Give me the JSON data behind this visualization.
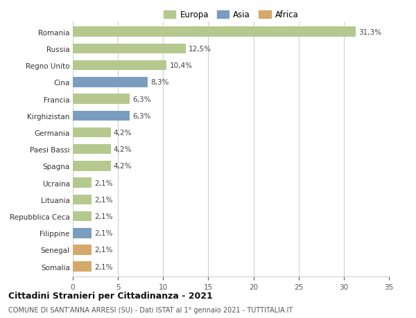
{
  "categories": [
    "Romania",
    "Russia",
    "Regno Unito",
    "Cina",
    "Francia",
    "Kirghizistan",
    "Germania",
    "Paesi Bassi",
    "Spagna",
    "Ucraina",
    "Lituania",
    "Repubblica Ceca",
    "Filippine",
    "Senegal",
    "Somalia"
  ],
  "values": [
    31.3,
    12.5,
    10.4,
    8.3,
    6.3,
    6.3,
    4.2,
    4.2,
    4.2,
    2.1,
    2.1,
    2.1,
    2.1,
    2.1,
    2.1
  ],
  "labels": [
    "31,3%",
    "12,5%",
    "10,4%",
    "8,3%",
    "6,3%",
    "6,3%",
    "4,2%",
    "4,2%",
    "4,2%",
    "2,1%",
    "2,1%",
    "2,1%",
    "2,1%",
    "2,1%",
    "2,1%"
  ],
  "continents": [
    "Europa",
    "Europa",
    "Europa",
    "Asia",
    "Europa",
    "Asia",
    "Europa",
    "Europa",
    "Europa",
    "Europa",
    "Europa",
    "Europa",
    "Asia",
    "Africa",
    "Africa"
  ],
  "colors": {
    "Europa": "#b5c98e",
    "Asia": "#7a9dbf",
    "Africa": "#d4a96a"
  },
  "legend": [
    "Europa",
    "Asia",
    "Africa"
  ],
  "legend_colors": [
    "#b5c98e",
    "#7a9dbf",
    "#d4a96a"
  ],
  "xlim": [
    0,
    35
  ],
  "xticks": [
    0,
    5,
    10,
    15,
    20,
    25,
    30,
    35
  ],
  "title": "Cittadini Stranieri per Cittadinanza - 2021",
  "subtitle": "COMUNE DI SANT'ANNA ARRESI (SU) - Dati ISTAT al 1° gennaio 2021 - TUTTITALIA.IT",
  "background_color": "#ffffff",
  "grid_color": "#d0d0d0",
  "bar_height": 0.6,
  "label_fontsize": 7.5,
  "tick_fontsize": 7.5,
  "legend_fontsize": 8.5,
  "title_fontsize": 9,
  "subtitle_fontsize": 7
}
